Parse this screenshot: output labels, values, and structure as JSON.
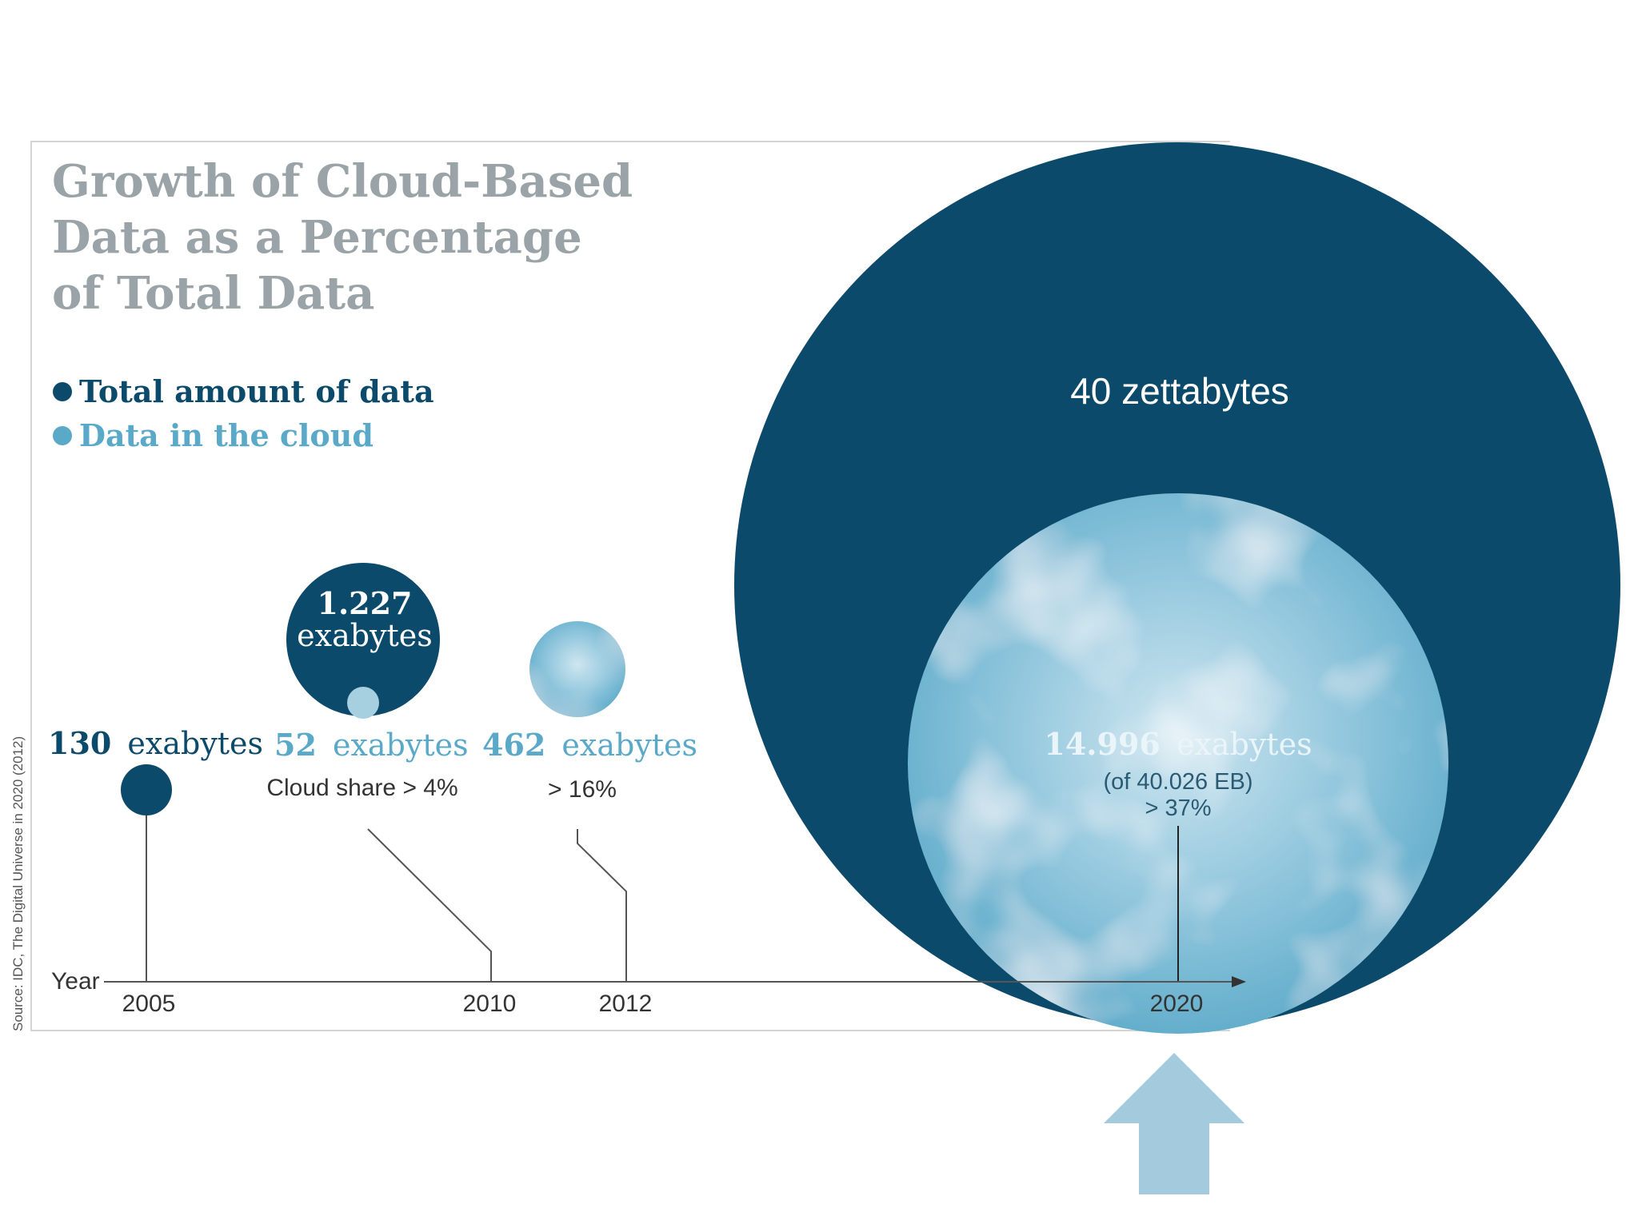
{
  "chart_data": {
    "type": "bubble",
    "title": [
      "Growth of Cloud-Based",
      "Data as a Percentage",
      "of Total Data"
    ],
    "legend": [
      {
        "label": "Total amount of data",
        "color": "#0b4a6b"
      },
      {
        "label": "Data in the cloud",
        "color": "#5aa9c8"
      }
    ],
    "axis_label": "Year",
    "source": "Source: IDC, The Digital Universe in 2020 (2012)",
    "points": [
      {
        "year": 2005,
        "total_label": [
          "130",
          "exabytes"
        ],
        "total_eb": 130,
        "cloud_eb": null,
        "share_label": ""
      },
      {
        "year": 2010,
        "total_label": [
          "1.227",
          "exabytes"
        ],
        "total_eb": 1227,
        "cloud_label": [
          "52",
          "exabytes"
        ],
        "cloud_eb": 52,
        "share_label": "Cloud share > 4%"
      },
      {
        "year": 2012,
        "total_label": null,
        "total_eb": null,
        "cloud_label": [
          "462",
          "exabytes"
        ],
        "cloud_eb": 462,
        "share_label": "> 16%"
      },
      {
        "year": 2020,
        "total_label": "40 zettabytes",
        "total_eb": 40026,
        "cloud_label": [
          "14.996",
          "exabytes"
        ],
        "cloud_eb": 14996,
        "detail_label": "(of 40.026 EB)",
        "share_label": "> 37%"
      }
    ],
    "colors": {
      "total": "#0b4a6b",
      "cloud": "#5aa9c8",
      "cloud_light": "#a6cfe0",
      "arrow": "#a4cade",
      "axis": "#555555"
    }
  }
}
